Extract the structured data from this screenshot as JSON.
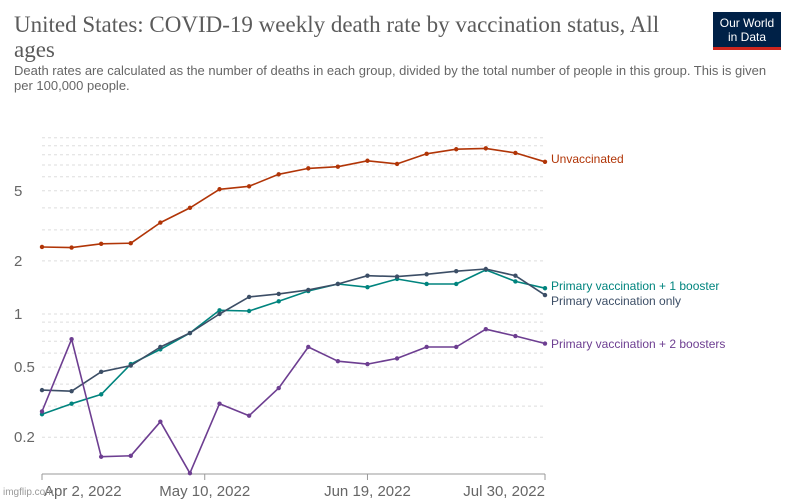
{
  "header": {
    "title": "United States: COVID-19 weekly death rate by vaccination status, All ages",
    "subtitle": "Death rates are calculated as the number of deaths in each group, divided by the total number of people in this group. This is given per 100,000 people."
  },
  "logo": {
    "line1": "Our World",
    "line2": "in Data"
  },
  "watermark": "imgflip.com",
  "chart_data": {
    "type": "line",
    "title": "United States: COVID-19 weekly death rate by vaccination status, All ages",
    "yscale": "log",
    "ylim": [
      0.13,
      16
    ],
    "yticks": [
      0.2,
      0.5,
      1,
      2,
      5
    ],
    "ytick_labels": [
      "0.2",
      "0.5",
      "1",
      "2",
      "5"
    ],
    "x_count": 18,
    "xticks": [
      {
        "index": 0,
        "label": "Apr 2, 2022"
      },
      {
        "index": 5.5,
        "label": "May 10, 2022"
      },
      {
        "index": 11,
        "label": "Jun 19, 2022"
      },
      {
        "index": 17,
        "label": "Jul 30, 2022"
      }
    ],
    "series": [
      {
        "name": "Unvaccinated",
        "color": "#b13507",
        "values": [
          2.4,
          2.38,
          2.5,
          2.52,
          3.3,
          4.0,
          5.1,
          5.3,
          6.2,
          6.7,
          6.85,
          7.4,
          7.1,
          8.1,
          8.6,
          8.7,
          8.2,
          7.3
        ]
      },
      {
        "name": "Primary vaccination + 1 booster",
        "color": "#00847e",
        "values": [
          0.27,
          0.31,
          0.35,
          0.52,
          0.63,
          0.78,
          1.05,
          1.04,
          1.18,
          1.35,
          1.48,
          1.42,
          1.58,
          1.48,
          1.48,
          1.78,
          1.53,
          1.4
        ]
      },
      {
        "name": "Primary vaccination only",
        "color": "#3c4e66",
        "values": [
          0.37,
          0.365,
          0.47,
          0.51,
          0.65,
          0.78,
          1.0,
          1.25,
          1.3,
          1.37,
          1.48,
          1.65,
          1.63,
          1.68,
          1.75,
          1.8,
          1.65,
          1.28
        ]
      },
      {
        "name": "Primary vaccination + 2 boosters",
        "color": "#6d3e91",
        "values": [
          0.28,
          0.72,
          0.155,
          0.157,
          0.245,
          0.125,
          0.31,
          0.265,
          0.38,
          0.65,
          0.54,
          0.52,
          0.56,
          0.65,
          0.65,
          0.82,
          0.75,
          0.68
        ]
      }
    ]
  }
}
